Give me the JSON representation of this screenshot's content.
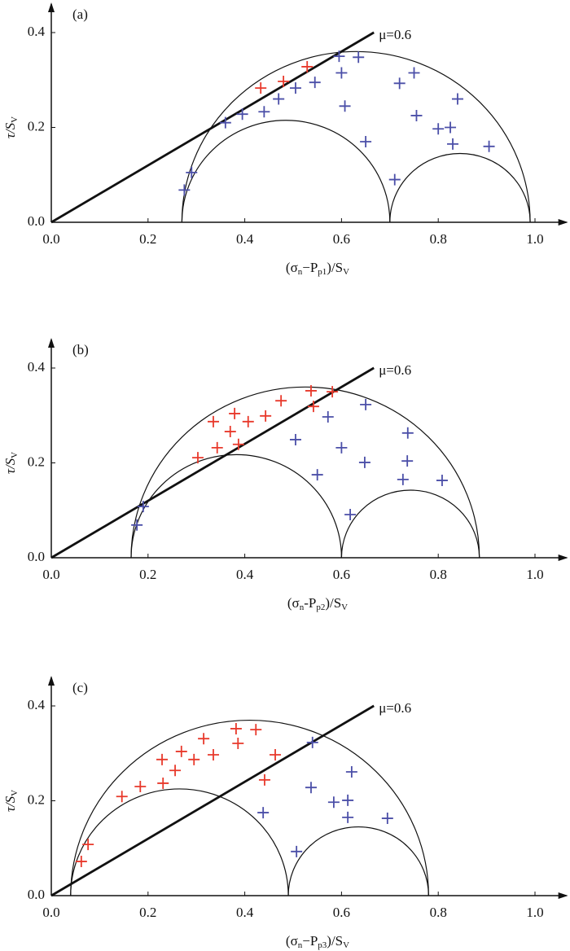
{
  "chart_data": [
    {
      "type": "mohr",
      "panel_label": "(a)",
      "xlabel": [
        "(σ",
        "n",
        "−P",
        "p1",
        ")/S",
        "V"
      ],
      "ylabel": [
        "τ/S",
        "V"
      ],
      "xlim": [
        0,
        1.065
      ],
      "ylim": [
        0,
        0.46
      ],
      "xticks": [
        {
          "value": 0,
          "label": "0.0"
        },
        0.2,
        0.4,
        0.6,
        0.8,
        {
          "value": 1,
          "label": "1.0"
        }
      ],
      "yticks": [
        {
          "value": 0,
          "label": "0.0"
        },
        0.2,
        0.4
      ],
      "circles": [
        [
          0.27,
          0.99
        ],
        [
          0.27,
          0.7
        ],
        [
          0.7,
          0.99
        ]
      ],
      "friction_line": {
        "slope": 0.6,
        "x_end": 0.667,
        "label": "μ=0.6"
      },
      "series": [
        {
          "color": "#e8392b",
          "x": [
            0.433,
            0.48,
            0.529
          ],
          "values": [
            0.283,
            0.297,
            0.328
          ]
        },
        {
          "color": "#4b4fa8",
          "x": [
            0.275,
            0.29,
            0.36,
            0.395,
            0.44,
            0.47,
            0.505,
            0.545,
            0.595,
            0.635,
            0.6,
            0.607,
            0.65,
            0.72,
            0.755,
            0.8,
            0.825,
            0.75,
            0.84,
            0.83,
            0.905,
            0.71
          ],
          "values": [
            0.068,
            0.105,
            0.21,
            0.228,
            0.233,
            0.26,
            0.283,
            0.295,
            0.35,
            0.348,
            0.315,
            0.245,
            0.17,
            0.293,
            0.225,
            0.197,
            0.2,
            0.315,
            0.26,
            0.165,
            0.16,
            0.09
          ]
        }
      ]
    },
    {
      "type": "mohr",
      "panel_label": "(b)",
      "xlabel": [
        "(σ",
        "n",
        "-P",
        "p2",
        ")/S",
        "V"
      ],
      "ylabel": [
        "τ/S",
        "V"
      ],
      "xlim": [
        0,
        1.065
      ],
      "ylim": [
        0,
        0.46
      ],
      "xticks": [
        {
          "value": 0,
          "label": "0.0"
        },
        0.2,
        0.4,
        0.6,
        0.8,
        {
          "value": 1,
          "label": "1.0"
        }
      ],
      "yticks": [
        {
          "value": 0,
          "label": "0.0"
        },
        0.2,
        0.4
      ],
      "circles": [
        [
          0.165,
          0.885
        ],
        [
          0.165,
          0.6
        ],
        [
          0.6,
          0.885
        ]
      ],
      "friction_line": {
        "slope": 0.6,
        "x_end": 0.667,
        "label": "μ=0.6"
      },
      "series": [
        {
          "color": "#e8392b",
          "x": [
            0.303,
            0.343,
            0.335,
            0.387,
            0.379,
            0.407,
            0.443,
            0.37,
            0.475,
            0.542,
            0.537,
            0.581
          ],
          "values": [
            0.211,
            0.232,
            0.287,
            0.239,
            0.304,
            0.287,
            0.299,
            0.266,
            0.331,
            0.319,
            0.352,
            0.35
          ]
        },
        {
          "color": "#4b4fa8",
          "x": [
            0.177,
            0.19,
            0.505,
            0.55,
            0.6,
            0.618,
            0.648,
            0.572,
            0.737,
            0.736,
            0.727,
            0.808,
            0.65
          ],
          "values": [
            0.069,
            0.108,
            0.249,
            0.175,
            0.232,
            0.091,
            0.201,
            0.297,
            0.263,
            0.204,
            0.165,
            0.163,
            0.323
          ]
        }
      ]
    },
    {
      "type": "mohr",
      "panel_label": "(c)",
      "xlabel": [
        "(σ",
        "n",
        "−P",
        "p3",
        ")/S",
        "V"
      ],
      "ylabel": [
        "τ/S",
        "V"
      ],
      "xlim": [
        0,
        1.065
      ],
      "ylim": [
        0,
        0.46
      ],
      "xticks": [
        {
          "value": 0,
          "label": "0.0"
        },
        0.2,
        0.4,
        0.6,
        0.8,
        {
          "value": 1,
          "label": "1.0"
        }
      ],
      "yticks": [
        {
          "value": 0,
          "label": "0.0"
        },
        0.2,
        0.4
      ],
      "circles": [
        [
          0.04,
          0.78
        ],
        [
          0.04,
          0.49
        ],
        [
          0.49,
          0.78
        ]
      ],
      "friction_line": {
        "slope": 0.6,
        "x_end": 0.667,
        "label": "μ=0.6"
      },
      "series": [
        {
          "color": "#e8392b",
          "x": [
            0.062,
            0.076,
            0.146,
            0.184,
            0.229,
            0.231,
            0.256,
            0.269,
            0.295,
            0.315,
            0.335,
            0.382,
            0.386,
            0.423,
            0.441,
            0.463
          ],
          "values": [
            0.072,
            0.108,
            0.209,
            0.23,
            0.287,
            0.237,
            0.264,
            0.304,
            0.287,
            0.331,
            0.297,
            0.352,
            0.321,
            0.35,
            0.244,
            0.297
          ]
        },
        {
          "color": "#4b4fa8",
          "x": [
            0.438,
            0.507,
            0.537,
            0.54,
            0.584,
            0.621,
            0.613,
            0.613,
            0.695
          ],
          "values": [
            0.175,
            0.093,
            0.228,
            0.323,
            0.197,
            0.261,
            0.201,
            0.165,
            0.163
          ]
        }
      ]
    }
  ]
}
